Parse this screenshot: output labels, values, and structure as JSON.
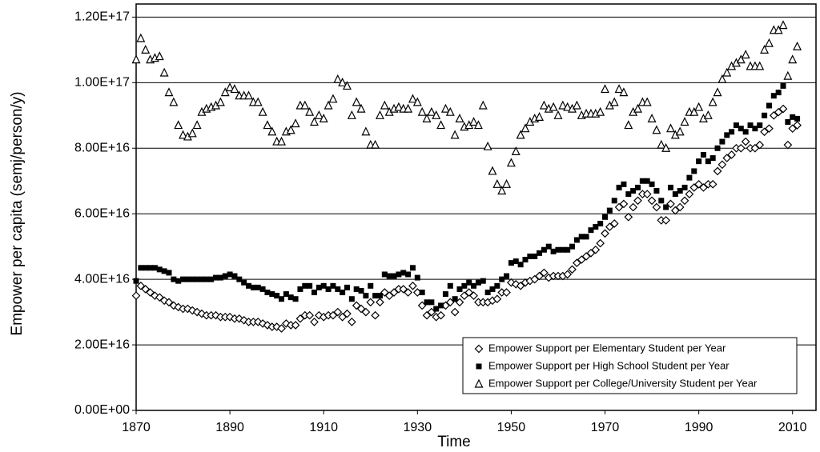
{
  "chart_data": {
    "type": "scatter",
    "x_label": "Time",
    "y_label": "Empower per capita (semj/person/y)",
    "x": [
      1870,
      1871,
      1872,
      1873,
      1874,
      1875,
      1876,
      1877,
      1878,
      1879,
      1880,
      1881,
      1882,
      1883,
      1884,
      1885,
      1886,
      1887,
      1888,
      1889,
      1890,
      1891,
      1892,
      1893,
      1894,
      1895,
      1896,
      1897,
      1898,
      1899,
      1900,
      1901,
      1902,
      1903,
      1904,
      1905,
      1906,
      1907,
      1908,
      1909,
      1910,
      1911,
      1912,
      1913,
      1914,
      1915,
      1916,
      1917,
      1918,
      1919,
      1920,
      1921,
      1922,
      1923,
      1924,
      1925,
      1926,
      1927,
      1928,
      1929,
      1930,
      1931,
      1932,
      1933,
      1934,
      1935,
      1936,
      1937,
      1938,
      1939,
      1940,
      1941,
      1942,
      1943,
      1944,
      1945,
      1946,
      1947,
      1948,
      1949,
      1950,
      1951,
      1952,
      1953,
      1954,
      1955,
      1956,
      1957,
      1958,
      1959,
      1960,
      1961,
      1962,
      1963,
      1964,
      1965,
      1966,
      1967,
      1968,
      1969,
      1970,
      1971,
      1972,
      1973,
      1974,
      1975,
      1976,
      1977,
      1978,
      1979,
      1980,
      1981,
      1982,
      1983,
      1984,
      1985,
      1986,
      1987,
      1988,
      1989,
      1990,
      1991,
      1992,
      1993,
      1994,
      1995,
      1996,
      1997,
      1998,
      1999,
      2000,
      2001,
      2002,
      2003,
      2004,
      2005,
      2006,
      2007,
      2008,
      2009,
      2010,
      2011
    ],
    "series": [
      {
        "name": "Empower Support per Elementary Student per Year",
        "marker": "diamond",
        "color": "#000000",
        "values": [
          3.5e+16,
          3.8e+16,
          3.7e+16,
          3.6e+16,
          3.5e+16,
          3.45e+16,
          3.35e+16,
          3.3e+16,
          3.2e+16,
          3.15e+16,
          3.1e+16,
          3.1e+16,
          3.05e+16,
          3e+16,
          2.95e+16,
          2.9e+16,
          2.9e+16,
          2.9e+16,
          2.85e+16,
          2.85e+16,
          2.85e+16,
          2.8e+16,
          2.8e+16,
          2.75e+16,
          2.7e+16,
          2.7e+16,
          2.7e+16,
          2.65e+16,
          2.6e+16,
          2.55e+16,
          2.55e+16,
          2.5e+16,
          2.65e+16,
          2.6e+16,
          2.6e+16,
          2.8e+16,
          2.9e+16,
          2.9e+16,
          2.7e+16,
          2.9e+16,
          2.85e+16,
          2.9e+16,
          2.9e+16,
          3e+16,
          2.85e+16,
          2.95e+16,
          2.7e+16,
          3.2e+16,
          3.1e+16,
          3e+16,
          3.3e+16,
          2.9e+16,
          3.3e+16,
          3.6e+16,
          3.5e+16,
          3.6e+16,
          3.7e+16,
          3.7e+16,
          3.6e+16,
          3.8e+16,
          3.6e+16,
          3.2e+16,
          2.9e+16,
          3e+16,
          2.85e+16,
          2.9e+16,
          3.2e+16,
          3.3e+16,
          3e+16,
          3.3e+16,
          3.5e+16,
          3.6e+16,
          3.5e+16,
          3.3e+16,
          3.3e+16,
          3.3e+16,
          3.35e+16,
          3.4e+16,
          3.6e+16,
          3.6e+16,
          3.9e+16,
          3.85e+16,
          3.8e+16,
          3.9e+16,
          3.95e+16,
          4e+16,
          4.1e+16,
          4.2e+16,
          4.05e+16,
          4.1e+16,
          4.1e+16,
          4.1e+16,
          4.15e+16,
          4.3e+16,
          4.5e+16,
          4.6e+16,
          4.7e+16,
          4.8e+16,
          4.9e+16,
          5.1e+16,
          5.4e+16,
          5.6e+16,
          5.7e+16,
          6.2e+16,
          6.3e+16,
          5.9e+16,
          6.2e+16,
          6.4e+16,
          6.6e+16,
          6.6e+16,
          6.4e+16,
          6.2e+16,
          5.8e+16,
          5.8e+16,
          6.3e+16,
          6.1e+16,
          6.2e+16,
          6.4e+16,
          6.6e+16,
          6.8e+16,
          6.9e+16,
          6.8e+16,
          6.9e+16,
          6.9e+16,
          7.3e+16,
          7.5e+16,
          7.7e+16,
          7.8e+16,
          8e+16,
          8e+16,
          8.2e+16,
          8e+16,
          8e+16,
          8.1e+16,
          8.5e+16,
          8.6e+16,
          9e+16,
          9.1e+16,
          9.2e+16,
          8.1e+16,
          8.6e+16,
          8.7e+16
        ]
      },
      {
        "name": "Empower Support per High School Student per Year",
        "marker": "square",
        "color": "#000000",
        "values": [
          3.95e+16,
          4.35e+16,
          4.35e+16,
          4.35e+16,
          4.35e+16,
          4.3e+16,
          4.25e+16,
          4.2e+16,
          4e+16,
          3.95e+16,
          4e+16,
          4e+16,
          4e+16,
          4e+16,
          4e+16,
          4e+16,
          4e+16,
          4.05e+16,
          4.05e+16,
          4.1e+16,
          4.15e+16,
          4.1e+16,
          4e+16,
          3.9e+16,
          3.8e+16,
          3.75e+16,
          3.75e+16,
          3.7e+16,
          3.6e+16,
          3.55e+16,
          3.5e+16,
          3.4e+16,
          3.55e+16,
          3.45e+16,
          3.4e+16,
          3.7e+16,
          3.8e+16,
          3.8e+16,
          3.6e+16,
          3.75e+16,
          3.8e+16,
          3.7e+16,
          3.8e+16,
          3.7e+16,
          3.6e+16,
          3.75e+16,
          3.4e+16,
          3.7e+16,
          3.65e+16,
          3.5e+16,
          3.8e+16,
          3.5e+16,
          3.5e+16,
          4.15e+16,
          4.1e+16,
          4.1e+16,
          4.15e+16,
          4.2e+16,
          4.15e+16,
          4.35e+16,
          4.05e+16,
          3.6e+16,
          3.3e+16,
          3.3e+16,
          3.1e+16,
          3.2e+16,
          3.55e+16,
          3.8e+16,
          3.4e+16,
          3.7e+16,
          3.8e+16,
          3.9e+16,
          3.8e+16,
          3.9e+16,
          3.95e+16,
          3.6e+16,
          3.7e+16,
          3.8e+16,
          4e+16,
          4.1e+16,
          4.5e+16,
          4.55e+16,
          4.45e+16,
          4.6e+16,
          4.7e+16,
          4.7e+16,
          4.8e+16,
          4.9e+16,
          5e+16,
          4.85e+16,
          4.9e+16,
          4.9e+16,
          4.9e+16,
          5e+16,
          5.2e+16,
          5.3e+16,
          5.3e+16,
          5.5e+16,
          5.6e+16,
          5.7e+16,
          5.9e+16,
          6.1e+16,
          6.4e+16,
          6.8e+16,
          6.9e+16,
          6.6e+16,
          6.7e+16,
          6.8e+16,
          7e+16,
          7e+16,
          6.9e+16,
          6.7e+16,
          6.4e+16,
          6.2e+16,
          6.8e+16,
          6.6e+16,
          6.7e+16,
          6.8e+16,
          7.1e+16,
          7.3e+16,
          7.6e+16,
          7.8e+16,
          7.6e+16,
          7.7e+16,
          8e+16,
          8.2e+16,
          8.4e+16,
          8.5e+16,
          8.7e+16,
          8.6e+16,
          8.5e+16,
          8.7e+16,
          8.6e+16,
          8.7e+16,
          9e+16,
          9.3e+16,
          9.6e+16,
          9.7e+16,
          9.9e+16,
          8.8e+16,
          8.95e+16,
          8.9e+16
        ]
      },
      {
        "name": "Empower Support per College/University Student per Year",
        "marker": "triangle",
        "color": "#000000",
        "values": [
          1.07e+17,
          1.135e+17,
          1.1e+17,
          1.07e+17,
          1.075e+17,
          1.08e+17,
          1.03e+17,
          9.7e+16,
          9.4e+16,
          8.7e+16,
          8.4e+16,
          8.35e+16,
          8.45e+16,
          8.7e+16,
          9.1e+16,
          9.2e+16,
          9.25e+16,
          9.3e+16,
          9.4e+16,
          9.7e+16,
          9.85e+16,
          9.8e+16,
          9.6e+16,
          9.6e+16,
          9.6e+16,
          9.4e+16,
          9.4e+16,
          9.1e+16,
          8.7e+16,
          8.5e+16,
          8.2e+16,
          8.2e+16,
          8.5e+16,
          8.55e+16,
          8.75e+16,
          9.3e+16,
          9.3e+16,
          9.1e+16,
          8.8e+16,
          9e+16,
          8.9e+16,
          9.3e+16,
          9.5e+16,
          1.01e+17,
          1e+17,
          9.9e+16,
          9e+16,
          9.4e+16,
          9.2e+16,
          8.5e+16,
          8.1e+16,
          8.1e+16,
          9e+16,
          9.3e+16,
          9.1e+16,
          9.2e+16,
          9.25e+16,
          9.2e+16,
          9.2e+16,
          9.5e+16,
          9.4e+16,
          9.1e+16,
          8.9e+16,
          9.1e+16,
          9e+16,
          8.7e+16,
          9.2e+16,
          9.1e+16,
          8.4e+16,
          8.9e+16,
          8.65e+16,
          8.7e+16,
          8.8e+16,
          8.7e+16,
          9.3e+16,
          8.05e+16,
          7.3e+16,
          6.9e+16,
          6.7e+16,
          6.9e+16,
          7.55e+16,
          7.9e+16,
          8.4e+16,
          8.6e+16,
          8.8e+16,
          8.9e+16,
          8.95e+16,
          9.3e+16,
          9.2e+16,
          9.25e+16,
          9e+16,
          9.3e+16,
          9.25e+16,
          9.2e+16,
          9.3e+16,
          9e+16,
          9.05e+16,
          9.05e+16,
          9.05e+16,
          9.1e+16,
          9.8e+16,
          9.3e+16,
          9.4e+16,
          9.8e+16,
          9.7e+16,
          8.7e+16,
          9.1e+16,
          9.2e+16,
          9.4e+16,
          9.4e+16,
          8.9e+16,
          8.55e+16,
          8.1e+16,
          8e+16,
          8.6e+16,
          8.4e+16,
          8.5e+16,
          8.8e+16,
          9.1e+16,
          9.1e+16,
          9.25e+16,
          8.9e+16,
          9e+16,
          9.4e+16,
          9.7e+16,
          1.01e+17,
          1.03e+17,
          1.05e+17,
          1.06e+17,
          1.07e+17,
          1.085e+17,
          1.05e+17,
          1.05e+17,
          1.05e+17,
          1.1e+17,
          1.12e+17,
          1.16e+17,
          1.16e+17,
          1.175e+17,
          1.02e+17,
          1.07e+17,
          1.11e+17
        ]
      }
    ],
    "xlim": [
      1870,
      2015
    ],
    "xticks": [
      1870,
      1890,
      1910,
      1930,
      1950,
      1970,
      1990,
      2010
    ],
    "ylim": [
      0,
      1.24e+17
    ],
    "yticks": [
      {
        "value": 0,
        "label": "0.00E+00"
      },
      {
        "value": 2e+16,
        "label": "2.00E+16"
      },
      {
        "value": 4e+16,
        "label": "4.00E+16"
      },
      {
        "value": 6e+16,
        "label": "6.00E+16"
      },
      {
        "value": 8e+16,
        "label": "8.00E+16"
      },
      {
        "value": 1e+17,
        "label": "1.00E+17"
      },
      {
        "value": 1.2e+17,
        "label": "1.20E+17"
      }
    ],
    "grid": true,
    "legend": "lower right"
  }
}
